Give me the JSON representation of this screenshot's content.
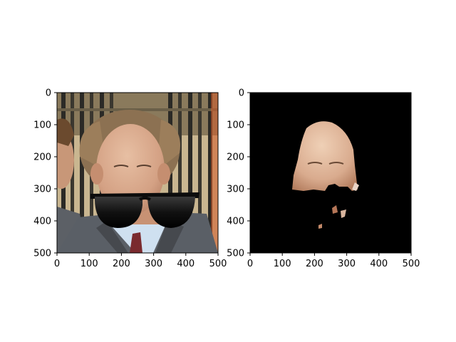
{
  "figure": {
    "background": "#ffffff"
  },
  "chart_data": [
    {
      "type": "image",
      "title": "",
      "xlabel": "",
      "ylabel": "",
      "xlim": [
        0,
        500
      ],
      "ylim": [
        500,
        0
      ],
      "x_ticks": [
        0,
        100,
        200,
        300,
        400,
        500
      ],
      "y_ticks": [
        0,
        100,
        200,
        300,
        400,
        500
      ],
      "grid": false,
      "image_content": "photo",
      "image_description": "Man in a grey suit and tie wearing black sunglasses in front of iron railings"
    },
    {
      "type": "image",
      "title": "",
      "xlabel": "",
      "ylabel": "",
      "xlim": [
        0,
        500
      ],
      "ylim": [
        500,
        0
      ],
      "x_ticks": [
        0,
        100,
        200,
        300,
        400,
        500
      ],
      "y_ticks": [
        0,
        100,
        200,
        300,
        400,
        500
      ],
      "grid": false,
      "image_content": "segmentation-mask",
      "image_description": "Black background with only the skin region of the face visible"
    }
  ],
  "colors": {
    "axis": "#000000",
    "mask_background": "#000000",
    "skin": "#d9ab8e",
    "suit": "#555a60",
    "railing_dark": "#2b2a26",
    "railing_light": "#c7b48f",
    "sunglasses": "#0c0c0c"
  }
}
